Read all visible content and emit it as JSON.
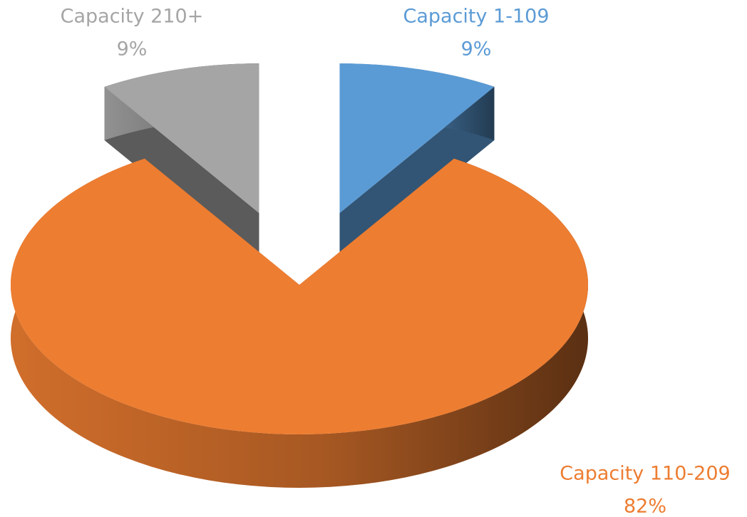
{
  "chart_data": {
    "type": "pie",
    "categories": [
      "Capacity 1-109",
      "Capacity 110-209",
      "Capacity 210+"
    ],
    "values": [
      9,
      82,
      9
    ],
    "value_labels": [
      "9%",
      "82%",
      "9%"
    ],
    "colors": [
      "#5b9bd5",
      "#ed7d31",
      "#a5a5a5"
    ]
  }
}
